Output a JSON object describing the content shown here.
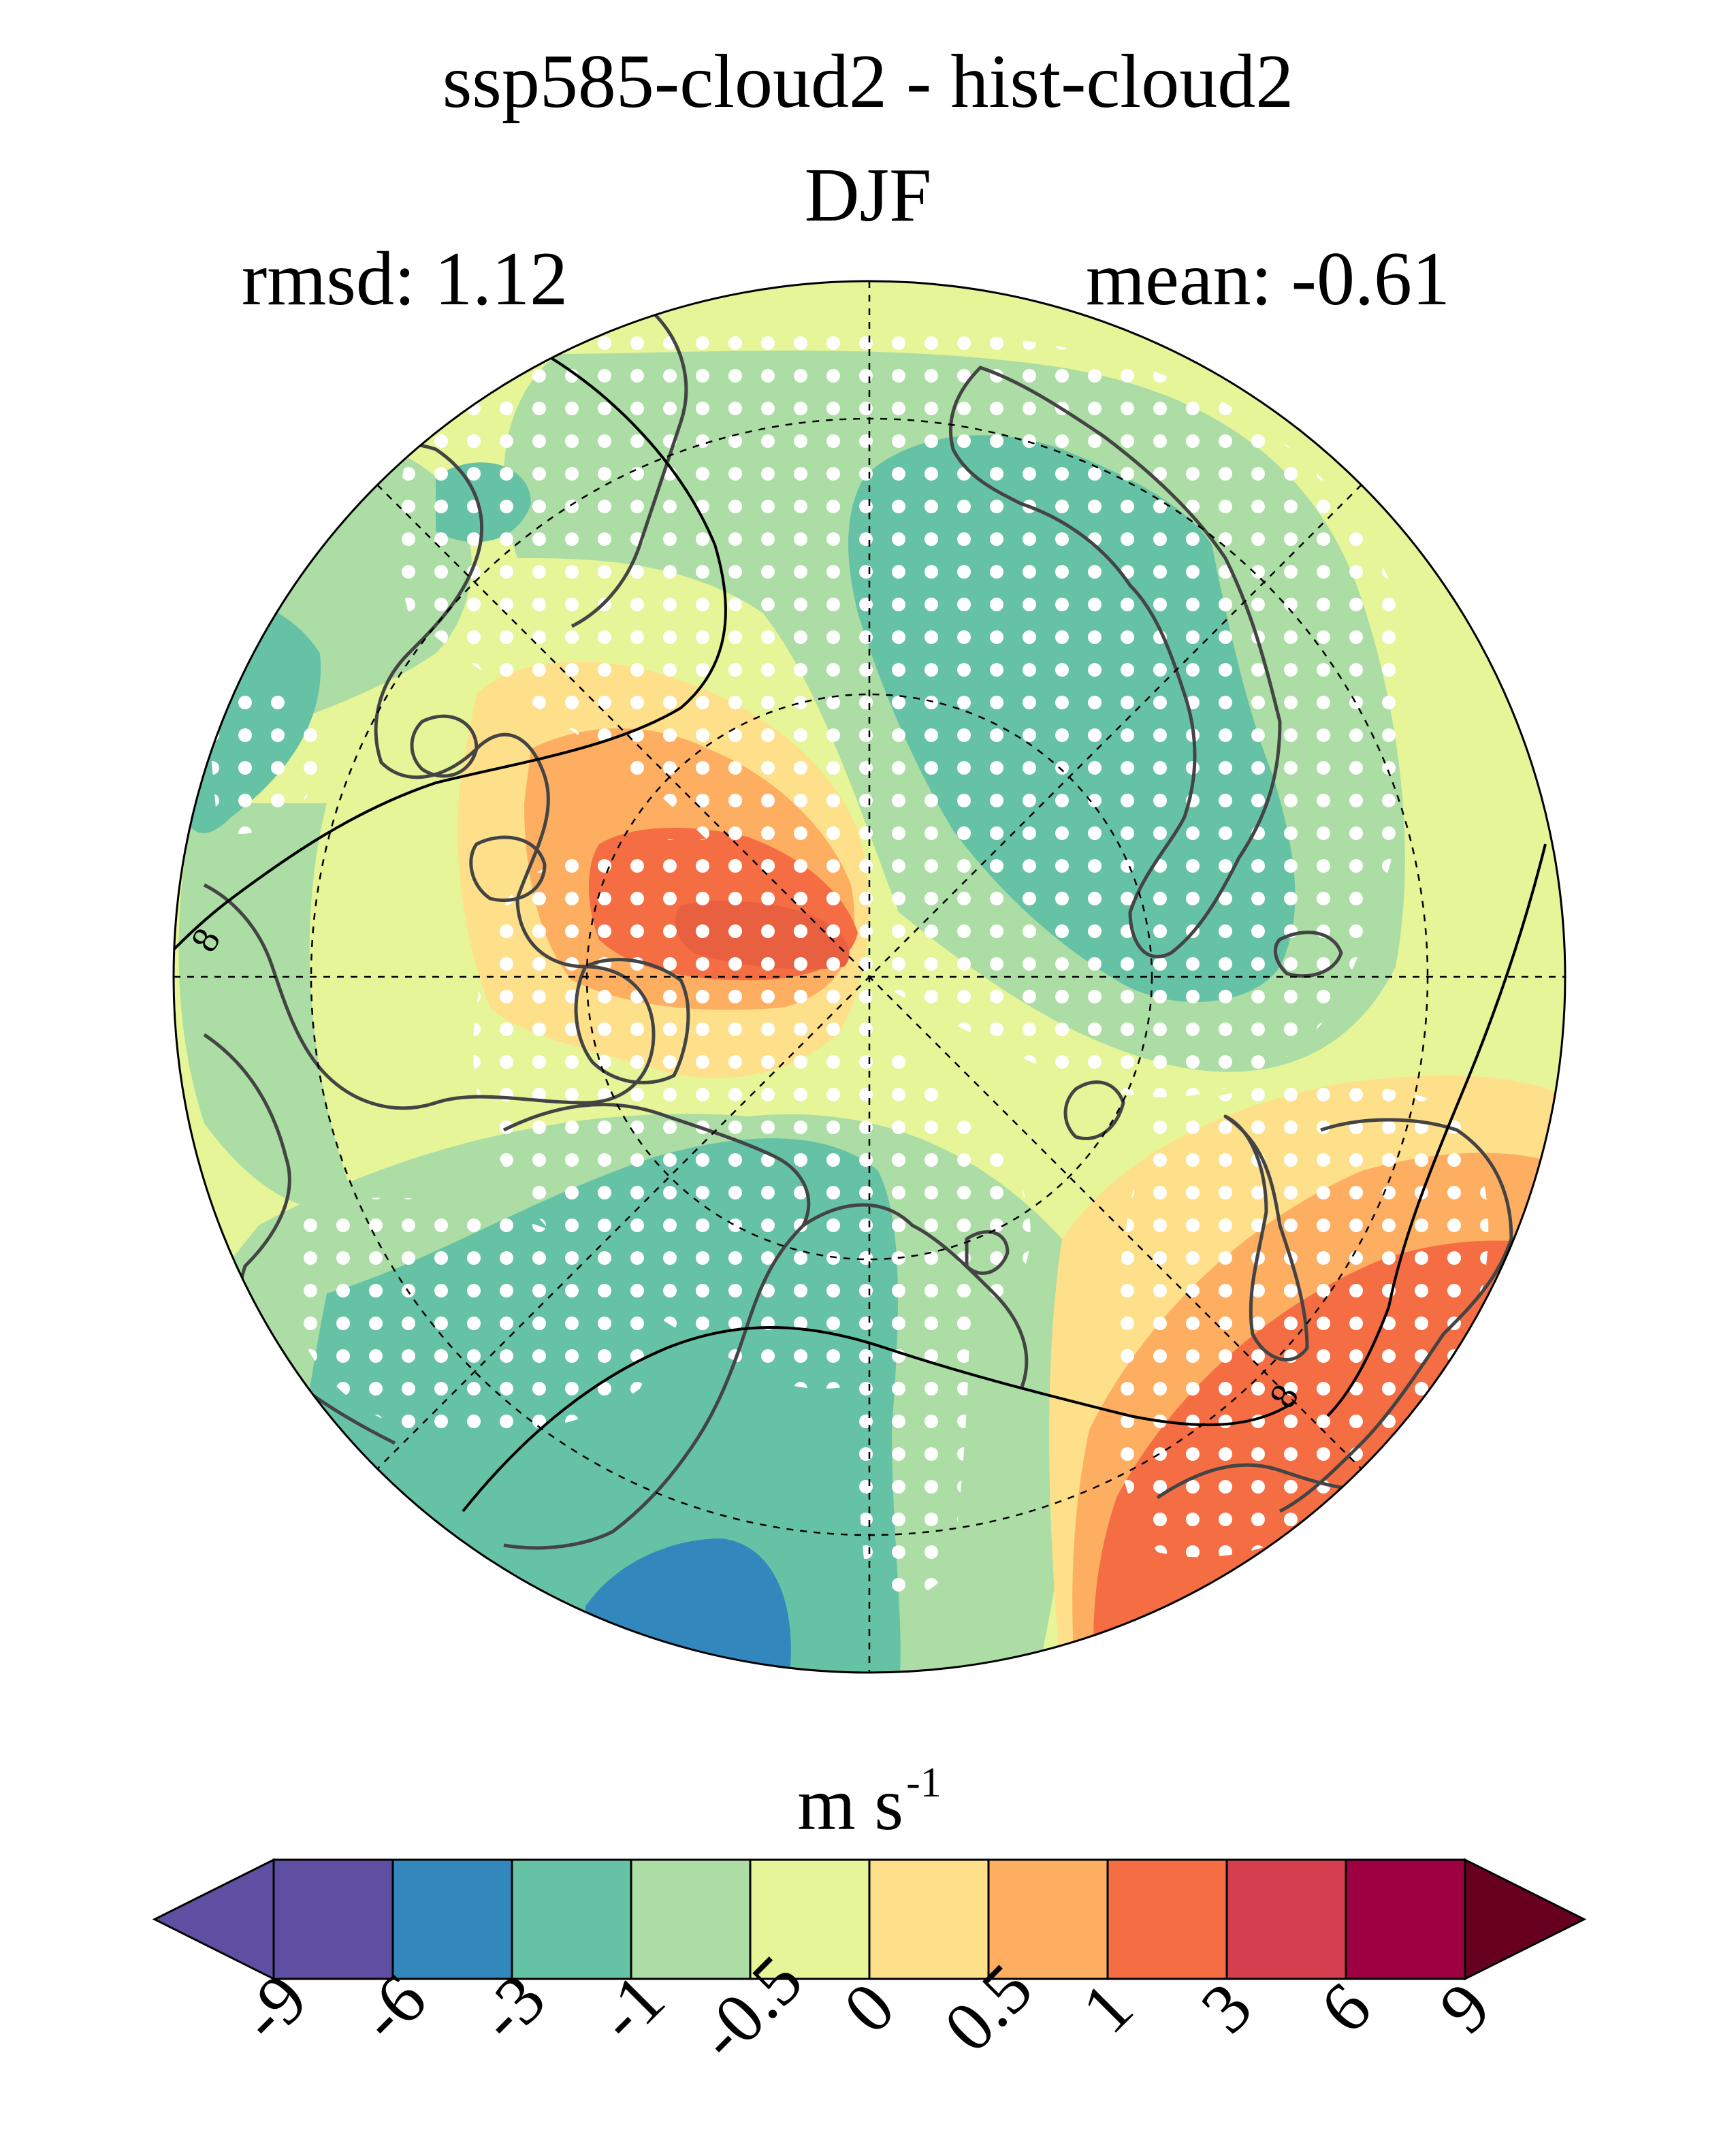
{
  "header": {
    "title": "ssp585-cloud2 - hist-cloud2",
    "season": "DJF",
    "rmsd_label": "rmsd: 1.12",
    "mean_label": "mean: -0.61"
  },
  "map": {
    "projection": "north-polar-stereographic",
    "contour_label_1": "8",
    "contour_label_2": "8",
    "stippling": "white dots mark significant differences"
  },
  "colorbar": {
    "units_base": "m s",
    "units_exp": "-1",
    "levels": [
      "-9",
      "-6",
      "-3",
      "-1",
      "-0.5",
      "0",
      "0.5",
      "1",
      "3",
      "6",
      "9"
    ],
    "colors": [
      "#5e4fa2",
      "#3288bd",
      "#66c2a5",
      "#abdda4",
      "#e6f598",
      "#fee08b",
      "#fdae61",
      "#f46d43",
      "#d53e4f",
      "#9e0142"
    ],
    "under_color": "#5e4fa2",
    "over_color": "#67001f"
  },
  "colors": {
    "band_m1_m3": "#66c2a5",
    "band_m05_m1": "#abdda4",
    "band_0_m05": "#e6f598",
    "band_0_05": "#fee08b",
    "band_05_1": "#fdae61",
    "band_1_3": "#f46d43",
    "band_m3_m6": "#3288bd",
    "coastline": "#444444"
  }
}
